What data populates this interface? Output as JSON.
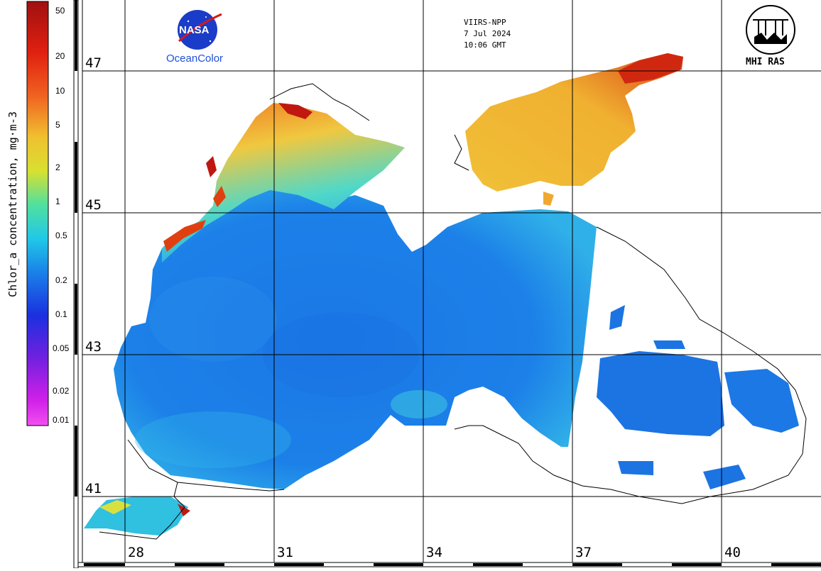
{
  "colorbar": {
    "title": "Chlor_a concentration, mg·m-3",
    "ticks": [
      "50",
      "20",
      "10",
      "5",
      "2",
      "1",
      "0.5",
      "0.2",
      "0.1",
      "0.05",
      "0.02",
      "0.01"
    ]
  },
  "header": {
    "sensor": "VIIRS-NPP",
    "date": "7 Jul 2024",
    "time": "10:06 GMT"
  },
  "logos": {
    "nasa_text": "NASA",
    "oceancolor": "OceanColor",
    "mhi": "MHI RAS"
  },
  "grid": {
    "latitudes": [
      "47",
      "45",
      "43",
      "41"
    ],
    "longitudes": [
      "28",
      "31",
      "34",
      "37",
      "40"
    ]
  },
  "map": {
    "region": "Black Sea",
    "colors": {
      "very_low": "#1a6fe0",
      "low": "#1c8fe8",
      "medium": "#40d8e0",
      "high": "#f0d040",
      "very_high": "#e84010",
      "max": "#a01010",
      "land": "#ffffff",
      "coast": "#000000"
    }
  }
}
